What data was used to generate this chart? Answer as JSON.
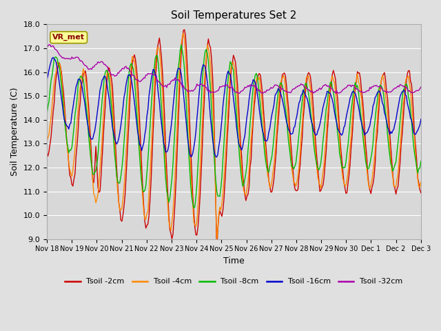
{
  "title": "Soil Temperatures Set 2",
  "xlabel": "Time",
  "ylabel": "Soil Temperature (C)",
  "ylim": [
    9.0,
    18.0
  ],
  "yticks": [
    9.0,
    10.0,
    11.0,
    12.0,
    13.0,
    14.0,
    15.0,
    16.0,
    17.0,
    18.0
  ],
  "fig_bg": "#e0e0e0",
  "plot_bg": "#d8d8d8",
  "grid_color": "#ffffff",
  "annotation_label": "VR_met",
  "annotation_text_color": "#880000",
  "annotation_bg": "#ffff99",
  "annotation_border": "#999900",
  "colors": {
    "2cm": "#cc0000",
    "4cm": "#ff8800",
    "8cm": "#00bb00",
    "16cm": "#0000cc",
    "32cm": "#aa00aa"
  },
  "x_tick_labels": [
    "Nov 18",
    "Nov 19",
    "Nov 20",
    "Nov 21",
    "Nov 22",
    "Nov 23",
    "Nov 24",
    "Nov 25",
    "Nov 26",
    "Nov 27",
    "Nov 28",
    "Nov 29",
    "Nov 30",
    "Dec 1",
    "Dec 2",
    "Dec 3"
  ],
  "x_tick_positions": [
    0,
    1,
    2,
    3,
    4,
    5,
    6,
    7,
    8,
    9,
    10,
    11,
    12,
    13,
    14,
    15
  ],
  "legend_labels": [
    "Tsoil -2cm",
    "Tsoil -4cm",
    "Tsoil -8cm",
    "Tsoil -16cm",
    "Tsoil -32cm"
  ]
}
